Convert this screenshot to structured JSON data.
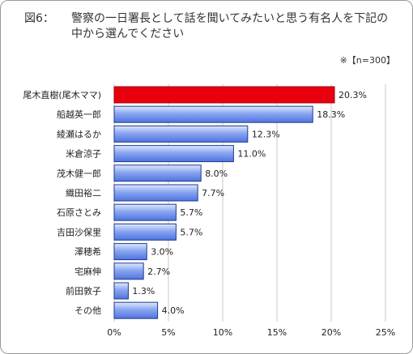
{
  "title": {
    "number": "図6：",
    "text": "警察の一日署長として話を聞いてみたいと思う有名人を下記の中から選んでください"
  },
  "note": "※【n=300】",
  "chart_data": {
    "type": "bar",
    "orientation": "horizontal",
    "categories": [
      "尾木直樹(尾木ママ)",
      "船越英一郎",
      "綾瀬はるか",
      "米倉涼子",
      "茂木健一郎",
      "織田裕二",
      "石原さとみ",
      "吉田沙保里",
      "澤穂希",
      "宅麻伸",
      "前田敦子",
      "その他"
    ],
    "values": [
      20.3,
      18.3,
      12.3,
      11.0,
      8.0,
      7.7,
      5.7,
      5.7,
      3.0,
      2.7,
      1.3,
      4.0
    ],
    "value_labels": [
      "20.3%",
      "18.3%",
      "12.3%",
      "11.0%",
      "8.0%",
      "7.7%",
      "5.7%",
      "5.7%",
      "3.0%",
      "2.7%",
      "1.3%",
      "4.0%"
    ],
    "xlim": [
      0,
      25
    ],
    "xticks": [
      0,
      5,
      10,
      15,
      20,
      25
    ],
    "xtick_labels": [
      "0%",
      "5%",
      "10%",
      "15%",
      "20%",
      "25%"
    ],
    "grid": true,
    "highlight_index": 0,
    "colors": {
      "highlight": "#e8000f",
      "bar": "#4f74e0",
      "bar_light": "#dfe8ff",
      "grid": "#c8c8c8"
    }
  }
}
